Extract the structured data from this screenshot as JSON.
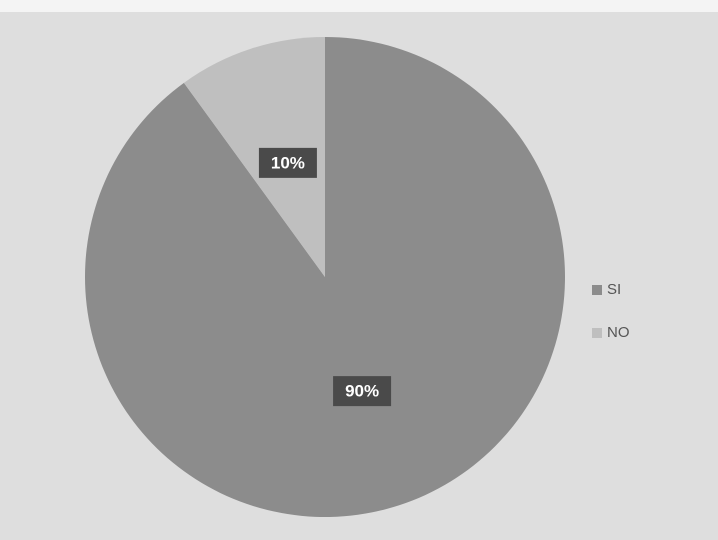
{
  "chart_data": {
    "type": "pie",
    "categories": [
      "SI",
      "NO"
    ],
    "values": [
      90,
      10
    ],
    "value_labels": [
      "90%",
      "10%"
    ],
    "colors": [
      "#8c8c8c",
      "#bfbfbf"
    ],
    "legend": "right"
  }
}
